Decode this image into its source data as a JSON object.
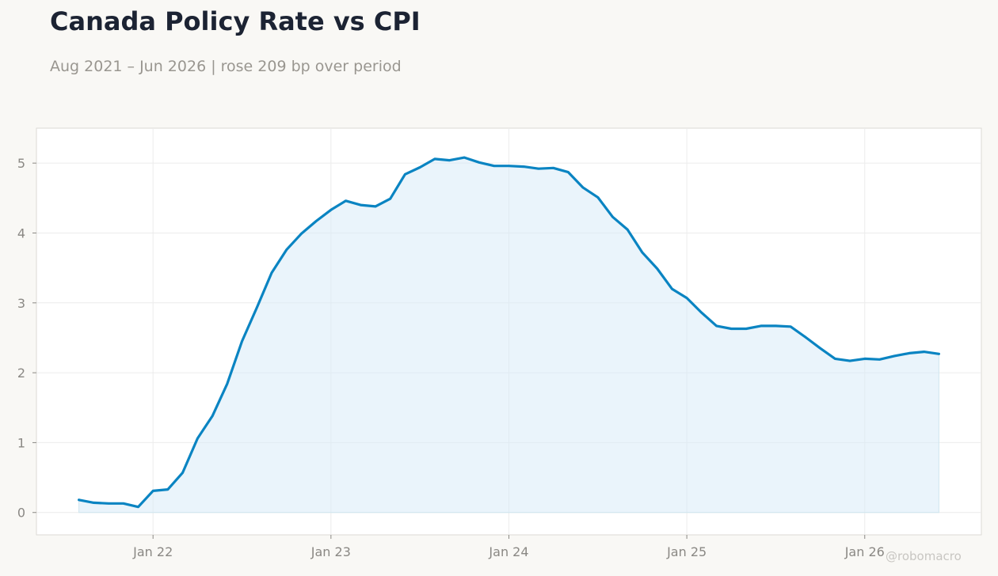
{
  "header": {
    "title": "Canada Policy Rate vs CPI",
    "subtitle": "Aug 2021 – Jun 2026 | rose 209 bp over period"
  },
  "watermark": "@robomacro",
  "colors": {
    "line": "#0a84c2",
    "fill": "#d6eaf8",
    "grid": "#ececec",
    "axis_text": "#8a8884",
    "frame": "#dcdad5",
    "plot_bg": "#ffffff"
  },
  "chart_data": {
    "type": "area",
    "title": "Canada Policy Rate vs CPI",
    "subtitle": "Aug 2021 – Jun 2026 | rose 209 bp over period",
    "xlabel": "",
    "ylabel": "",
    "ylim": [
      -0.32,
      5.5
    ],
    "yticks": [
      0,
      1,
      2,
      3,
      4,
      5
    ],
    "xticks": [
      {
        "label": "Jan 22",
        "date": "2022-01"
      },
      {
        "label": "Jan 23",
        "date": "2023-01"
      },
      {
        "label": "Jan 24",
        "date": "2024-01"
      },
      {
        "label": "Jan 25",
        "date": "2025-01"
      },
      {
        "label": "Jan 26",
        "date": "2026-01"
      }
    ],
    "grid": true,
    "x": [
      "2021-08",
      "2021-09",
      "2021-10",
      "2021-11",
      "2021-12",
      "2022-01",
      "2022-02",
      "2022-03",
      "2022-04",
      "2022-05",
      "2022-06",
      "2022-07",
      "2022-08",
      "2022-09",
      "2022-10",
      "2022-11",
      "2022-12",
      "2023-01",
      "2023-02",
      "2023-03",
      "2023-04",
      "2023-05",
      "2023-06",
      "2023-07",
      "2023-08",
      "2023-09",
      "2023-10",
      "2023-11",
      "2023-12",
      "2024-01",
      "2024-02",
      "2024-03",
      "2024-04",
      "2024-05",
      "2024-06",
      "2024-07",
      "2024-08",
      "2024-09",
      "2024-10",
      "2024-11",
      "2024-12",
      "2025-01",
      "2025-02",
      "2025-03",
      "2025-04",
      "2025-05",
      "2025-06",
      "2025-07",
      "2025-08",
      "2025-09",
      "2025-10",
      "2025-11",
      "2025-12",
      "2026-01",
      "2026-02",
      "2026-03",
      "2026-04",
      "2026-05",
      "2026-06"
    ],
    "series": [
      {
        "values": [
          0.18,
          0.14,
          0.13,
          0.13,
          0.08,
          0.31,
          0.33,
          0.57,
          1.06,
          1.38,
          1.84,
          2.45,
          2.93,
          3.43,
          3.76,
          3.99,
          4.17,
          4.33,
          4.46,
          4.4,
          4.38,
          4.49,
          4.84,
          4.94,
          5.06,
          5.04,
          5.08,
          5.01,
          4.96,
          4.96,
          4.95,
          4.92,
          4.93,
          4.87,
          4.65,
          4.51,
          4.23,
          4.05,
          3.72,
          3.49,
          3.2,
          3.07,
          2.86,
          2.67,
          2.63,
          2.63,
          2.67,
          2.67,
          2.66,
          2.51,
          2.35,
          2.2,
          2.17,
          2.2,
          2.19,
          2.24,
          2.28,
          2.3,
          2.27
        ]
      }
    ]
  }
}
